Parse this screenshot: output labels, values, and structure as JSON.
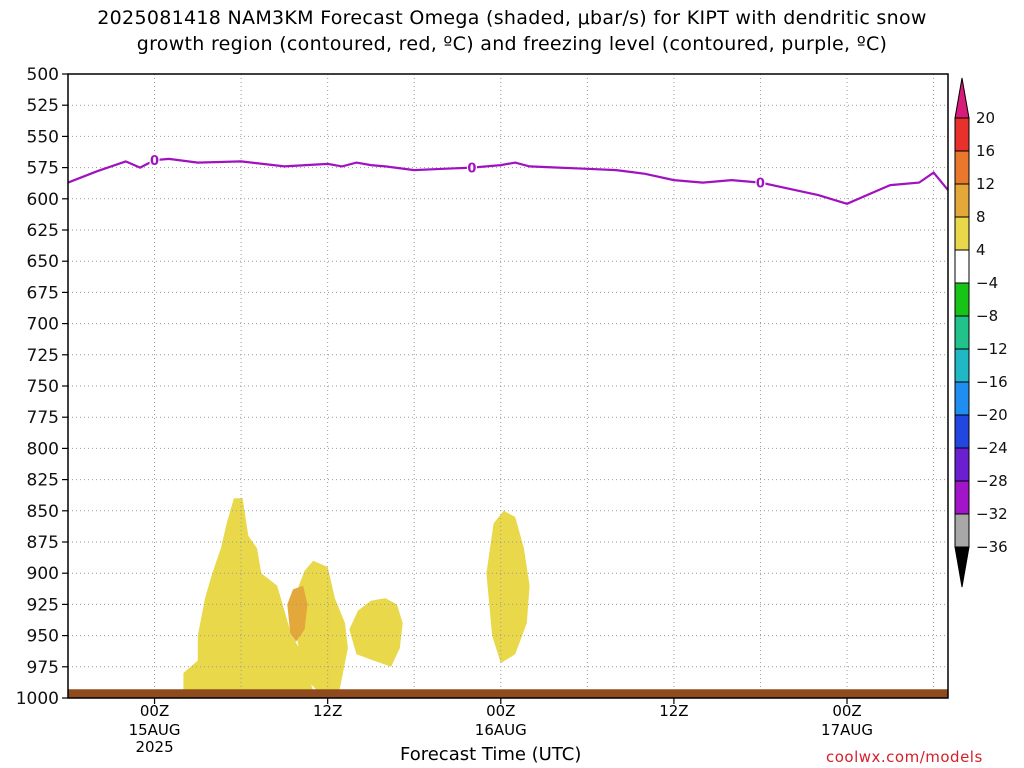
{
  "title": {
    "line1": "2025081418 NAM3KM Forecast Omega (shaded, μbar/s) for KIPT with dendritic snow",
    "line2": "growth region (contoured, red, ºC) and freezing level (contoured, purple, ºC)"
  },
  "axes": {
    "xlabel": "Forecast Time (UTC)",
    "x_ticks": [
      {
        "label": "00Z",
        "sub1": "15AUG",
        "sub2": "2025"
      },
      {
        "label": "12Z",
        "sub1": "",
        "sub2": ""
      },
      {
        "label": "00Z",
        "sub1": "16AUG",
        "sub2": ""
      },
      {
        "label": "12Z",
        "sub1": "",
        "sub2": ""
      },
      {
        "label": "00Z",
        "sub1": "17AUG",
        "sub2": ""
      }
    ],
    "y_ticks": [
      "500",
      "525",
      "550",
      "575",
      "600",
      "625",
      "650",
      "675",
      "700",
      "725",
      "750",
      "775",
      "800",
      "825",
      "850",
      "875",
      "900",
      "925",
      "950",
      "975",
      "1000"
    ]
  },
  "credit": "coolwx.com/models",
  "chart_data": {
    "type": "heatmap",
    "title": "2025081418 NAM3KM Forecast Omega (shaded, μbar/s) for KIPT with dendritic snow growth region (contoured, red, ºC) and freezing level (contoured, purple, ºC)",
    "xlabel": "Forecast Time (UTC)",
    "ylabel": "",
    "x_unit": "hours from 2025-08-15 00Z",
    "xlim": [
      -6,
      55
    ],
    "ylim": [
      1000,
      500
    ],
    "colorbar": {
      "labels": [
        "20",
        "16",
        "12",
        "8",
        "4",
        "-4",
        "-8",
        "-12",
        "-16",
        "-20",
        "-24",
        "-28",
        "-32",
        "-36"
      ],
      "bins": [
        {
          "min": 20,
          "max": null,
          "color": "#d81b7a"
        },
        {
          "min": 16,
          "max": 20,
          "color": "#e8312a"
        },
        {
          "min": 12,
          "max": 16,
          "color": "#e9782c"
        },
        {
          "min": 8,
          "max": 12,
          "color": "#e3a73a"
        },
        {
          "min": 4,
          "max": 8,
          "color": "#e8d84a"
        },
        {
          "min": -4,
          "max": 4,
          "color": "#ffffff"
        },
        {
          "min": -8,
          "max": -4,
          "color": "#16c316"
        },
        {
          "min": -12,
          "max": -8,
          "color": "#22c38a"
        },
        {
          "min": -16,
          "max": -12,
          "color": "#20b8c4"
        },
        {
          "min": -20,
          "max": -16,
          "color": "#1f8ef0"
        },
        {
          "min": -24,
          "max": -20,
          "color": "#2247e0"
        },
        {
          "min": -28,
          "max": -24,
          "color": "#6b1fd0"
        },
        {
          "min": -32,
          "max": -28,
          "color": "#a114c8"
        },
        {
          "min": -36,
          "max": -32,
          "color": "#a8a8a8"
        },
        {
          "min": null,
          "max": -36,
          "color": "#000000"
        }
      ]
    },
    "freezing_level": {
      "label": "0",
      "color": "#a012c0",
      "points": [
        [
          -6,
          587
        ],
        [
          -4,
          578
        ],
        [
          -2,
          570
        ],
        [
          -1,
          575
        ],
        [
          0,
          569
        ],
        [
          1,
          568
        ],
        [
          3,
          571
        ],
        [
          6,
          570
        ],
        [
          9,
          574
        ],
        [
          12,
          572
        ],
        [
          13,
          574
        ],
        [
          14,
          571
        ],
        [
          15,
          573
        ],
        [
          16,
          574
        ],
        [
          18,
          577
        ],
        [
          20,
          576
        ],
        [
          22,
          575
        ],
        [
          24,
          573
        ],
        [
          25,
          571
        ],
        [
          26,
          574
        ],
        [
          28,
          575
        ],
        [
          30,
          576
        ],
        [
          32,
          577
        ],
        [
          34,
          580
        ],
        [
          36,
          585
        ],
        [
          38,
          587
        ],
        [
          40,
          585
        ],
        [
          42,
          587
        ],
        [
          44,
          592
        ],
        [
          46,
          597
        ],
        [
          48,
          604
        ],
        [
          50,
          594
        ],
        [
          51,
          589
        ],
        [
          53,
          587
        ],
        [
          54,
          579
        ],
        [
          55,
          593
        ]
      ]
    },
    "omega_regions": [
      {
        "level": 4,
        "points": [
          [
            2.0,
            1000
          ],
          [
            2.0,
            980
          ],
          [
            3.0,
            970
          ],
          [
            3.0,
            950
          ],
          [
            3.5,
            920
          ],
          [
            4.0,
            900
          ],
          [
            4.6,
            880
          ],
          [
            5.0,
            860
          ],
          [
            5.5,
            840
          ],
          [
            6.1,
            840
          ],
          [
            6.5,
            870
          ],
          [
            7.1,
            880
          ],
          [
            7.4,
            900
          ],
          [
            8.5,
            910
          ],
          [
            9.0,
            930
          ],
          [
            9.5,
            950
          ],
          [
            10.3,
            965
          ],
          [
            11.0,
            995
          ],
          [
            12.0,
            1000
          ]
        ]
      },
      {
        "level": 4,
        "points": [
          [
            10.0,
            910
          ],
          [
            10.4,
            898
          ],
          [
            11.0,
            890
          ],
          [
            12.0,
            895
          ],
          [
            12.5,
            920
          ],
          [
            13.2,
            940
          ],
          [
            13.4,
            960
          ],
          [
            12.8,
            995
          ],
          [
            11.8,
            1000
          ],
          [
            10.5,
            985
          ],
          [
            10.0,
            960
          ],
          [
            9.5,
            930
          ]
        ]
      },
      {
        "level": 8,
        "points": [
          [
            9.2,
            925
          ],
          [
            9.6,
            913
          ],
          [
            10.3,
            910
          ],
          [
            10.6,
            925
          ],
          [
            10.4,
            945
          ],
          [
            9.8,
            955
          ],
          [
            9.4,
            948
          ]
        ]
      },
      {
        "level": 4,
        "points": [
          [
            13.5,
            945
          ],
          [
            14.1,
            930
          ],
          [
            15.0,
            922
          ],
          [
            16.0,
            920
          ],
          [
            16.8,
            925
          ],
          [
            17.2,
            940
          ],
          [
            17.0,
            960
          ],
          [
            16.4,
            975
          ],
          [
            15.2,
            970
          ],
          [
            14.0,
            965
          ]
        ]
      },
      {
        "level": 4,
        "points": [
          [
            23.5,
            860
          ],
          [
            24.2,
            850
          ],
          [
            25.0,
            855
          ],
          [
            25.6,
            880
          ],
          [
            26.0,
            910
          ],
          [
            25.8,
            940
          ],
          [
            25.0,
            965
          ],
          [
            24.0,
            972
          ],
          [
            23.4,
            950
          ],
          [
            23.0,
            900
          ]
        ]
      }
    ]
  }
}
